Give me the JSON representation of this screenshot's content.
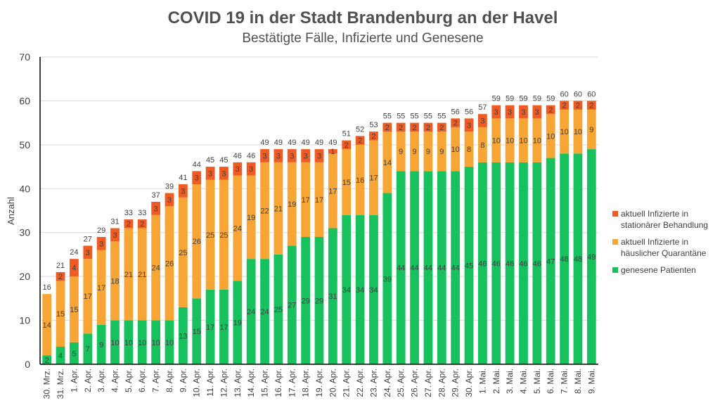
{
  "chart_data": {
    "type": "bar",
    "stacked": true,
    "title": "COVID 19 in der Stadt Brandenburg an der Havel",
    "subtitle": "Bestätigte Fälle, Infizierte und Genesene",
    "ylabel": "Anzahl",
    "xlabel": "",
    "ylim": [
      0,
      70
    ],
    "yticks": [
      0,
      10,
      20,
      30,
      40,
      50,
      60,
      70
    ],
    "grid": true,
    "legend_position": "right",
    "categories": [
      "30. Mrz.",
      "31. Mrz.",
      "1. Apr.",
      "2. Apr.",
      "3. Apr.",
      "4. Apr.",
      "5. Apr.",
      "6. Apr.",
      "7. Apr.",
      "8. Apr.",
      "9. Apr.",
      "10. Apr.",
      "11. Apr.",
      "12. Apr.",
      "13. Apr.",
      "14. Apr.",
      "15. Apr.",
      "16. Apr.",
      "17. Apr.",
      "18. Apr.",
      "19. Apr.",
      "20. Apr.",
      "21. Apr.",
      "22. Apr.",
      "23. Apr.",
      "24. Apr.",
      "25. Apr.",
      "26. Apr.",
      "27. Apr.",
      "28. Apr.",
      "29. Apr.",
      "30. Apr.",
      "1. Mai.",
      "2. Mai.",
      "3. Mai.",
      "4. Mai.",
      "5. Mai.",
      "6. Mai.",
      "7. Mai.",
      "8. Mai.",
      "9. Mai."
    ],
    "series": [
      {
        "name": "genesene Patienten",
        "color": "#16c15e",
        "values": [
          2,
          4,
          5,
          7,
          9,
          10,
          10,
          10,
          10,
          10,
          13,
          15,
          17,
          17,
          19,
          24,
          24,
          25,
          27,
          29,
          29,
          31,
          34,
          34,
          34,
          39,
          44,
          44,
          44,
          44,
          44,
          45,
          46,
          46,
          46,
          46,
          46,
          47,
          48,
          48,
          49
        ]
      },
      {
        "name": "aktuell Infizierte in häuslicher Quarantäne",
        "color": "#f7a535",
        "values": [
          14,
          15,
          15,
          17,
          17,
          18,
          21,
          21,
          24,
          26,
          25,
          26,
          25,
          25,
          24,
          19,
          22,
          21,
          19,
          17,
          17,
          17,
          15,
          16,
          17,
          14,
          9,
          9,
          9,
          9,
          10,
          8,
          8,
          10,
          10,
          10,
          10,
          10,
          10,
          10,
          9
        ]
      },
      {
        "name": "aktuell Infizierte in stationärer Behandlung",
        "color": "#ef5b23",
        "values": [
          0,
          2,
          4,
          3,
          3,
          3,
          2,
          2,
          3,
          3,
          3,
          3,
          3,
          3,
          3,
          3,
          3,
          3,
          3,
          3,
          3,
          1,
          2,
          2,
          2,
          2,
          2,
          2,
          2,
          2,
          2,
          3,
          3,
          3,
          3,
          3,
          3,
          2,
          2,
          2,
          2
        ]
      }
    ],
    "totals": [
      16,
      21,
      24,
      27,
      29,
      31,
      33,
      33,
      37,
      39,
      41,
      44,
      45,
      45,
      46,
      46,
      49,
      49,
      49,
      49,
      49,
      49,
      51,
      52,
      53,
      55,
      55,
      55,
      55,
      55,
      56,
      56,
      57,
      59,
      59,
      59,
      59,
      59,
      60,
      60,
      60
    ]
  }
}
